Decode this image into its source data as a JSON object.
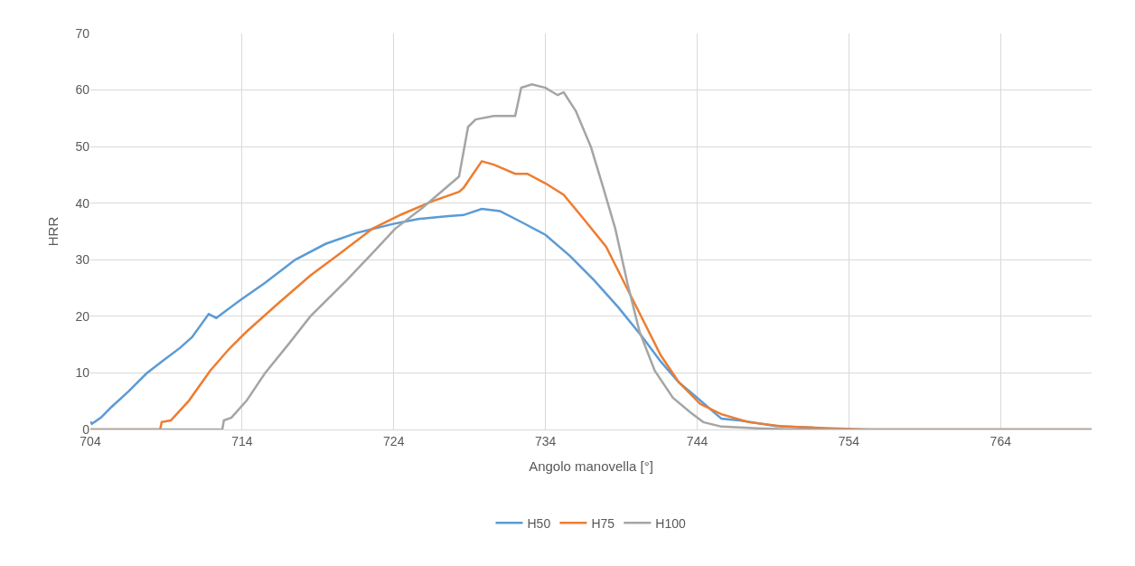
{
  "chart_data": {
    "type": "line",
    "xlabel": "Angolo manovella [°]",
    "ylabel": "HRR",
    "xlim": [
      704,
      770
    ],
    "xticks": [
      704,
      714,
      724,
      734,
      744,
      754,
      764
    ],
    "ylim": [
      0,
      70
    ],
    "yticks": [
      0,
      10,
      20,
      30,
      40,
      50,
      60,
      70
    ],
    "grid": true,
    "legend": "bottom",
    "line_style": "solid",
    "series": [
      {
        "name": "H50",
        "color": "#5b9bd5",
        "x": [
          704.0,
          704.1,
          704.7,
          705.4,
          706.5,
          707.7,
          708.7,
          709.9,
          710.7,
          711.8,
          712.3,
          713.9,
          715.5,
          717.5,
          719.5,
          721.5,
          723.9,
          725.6,
          727.6,
          728.6,
          729.8,
          731.0,
          732.6,
          734.0,
          735.6,
          737.2,
          738.8,
          740.4,
          741.6,
          742.8,
          744.0,
          745.6,
          746.8,
          749.2,
          751.7
        ],
        "values": [
          1.4,
          1.0,
          2.1,
          4.0,
          6.7,
          9.9,
          12.0,
          14.4,
          16.3,
          20.4,
          19.7,
          22.9,
          25.9,
          30.0,
          32.8,
          34.7,
          36.3,
          37.2,
          37.7,
          37.9,
          39.0,
          38.6,
          36.4,
          34.4,
          30.7,
          26.4,
          21.6,
          16.3,
          12.0,
          8.3,
          5.6,
          1.9,
          1.6,
          0.6,
          0.3
        ]
      },
      {
        "name": "H75",
        "color": "#ed7d31",
        "x": [
          704.0,
          708.6,
          708.7,
          709.3,
          710.5,
          711.9,
          713.1,
          714.3,
          716.3,
          718.5,
          720.5,
          722.6,
          724.5,
          726.5,
          728.3,
          728.6,
          729.8,
          730.6,
          732.0,
          732.8,
          734.0,
          735.2,
          736.4,
          738.0,
          739.2,
          740.4,
          741.6,
          742.8,
          744.2,
          745.6,
          747.4,
          749.8,
          752.9,
          755.3,
          770.0
        ],
        "values": [
          0,
          0,
          1.3,
          1.6,
          5.1,
          10.4,
          14.1,
          17.3,
          22.1,
          27.2,
          31.2,
          35.5,
          38.0,
          40.3,
          42.0,
          42.7,
          47.4,
          46.8,
          45.2,
          45.2,
          43.5,
          41.5,
          37.6,
          32.3,
          25.9,
          19.5,
          13.1,
          8.3,
          4.5,
          2.7,
          1.3,
          0.5,
          0.2,
          0,
          0
        ]
      },
      {
        "name": "H100",
        "color": "#a5a5a5",
        "x": [
          704.0,
          712.7,
          712.8,
          713.3,
          714.3,
          715.5,
          717.1,
          718.5,
          720.9,
          722.6,
          724.1,
          725.9,
          728.3,
          728.9,
          729.4,
          730.6,
          732.0,
          732.4,
          733.1,
          734.0,
          734.8,
          735.2,
          736.0,
          737.0,
          737.8,
          738.6,
          739.4,
          740.2,
          741.2,
          742.4,
          743.6,
          744.4,
          745.6,
          748.0,
          750.4,
          770.0
        ],
        "values": [
          0,
          0,
          1.6,
          2.1,
          5.1,
          9.9,
          15.2,
          20.0,
          26.4,
          31.2,
          35.5,
          39.2,
          44.7,
          53.5,
          54.8,
          55.4,
          55.4,
          60.4,
          61.0,
          60.4,
          59.1,
          59.6,
          56.3,
          49.9,
          42.8,
          35.5,
          25.9,
          17.3,
          10.4,
          5.6,
          2.9,
          1.3,
          0.5,
          0.2,
          0,
          0
        ]
      }
    ]
  }
}
